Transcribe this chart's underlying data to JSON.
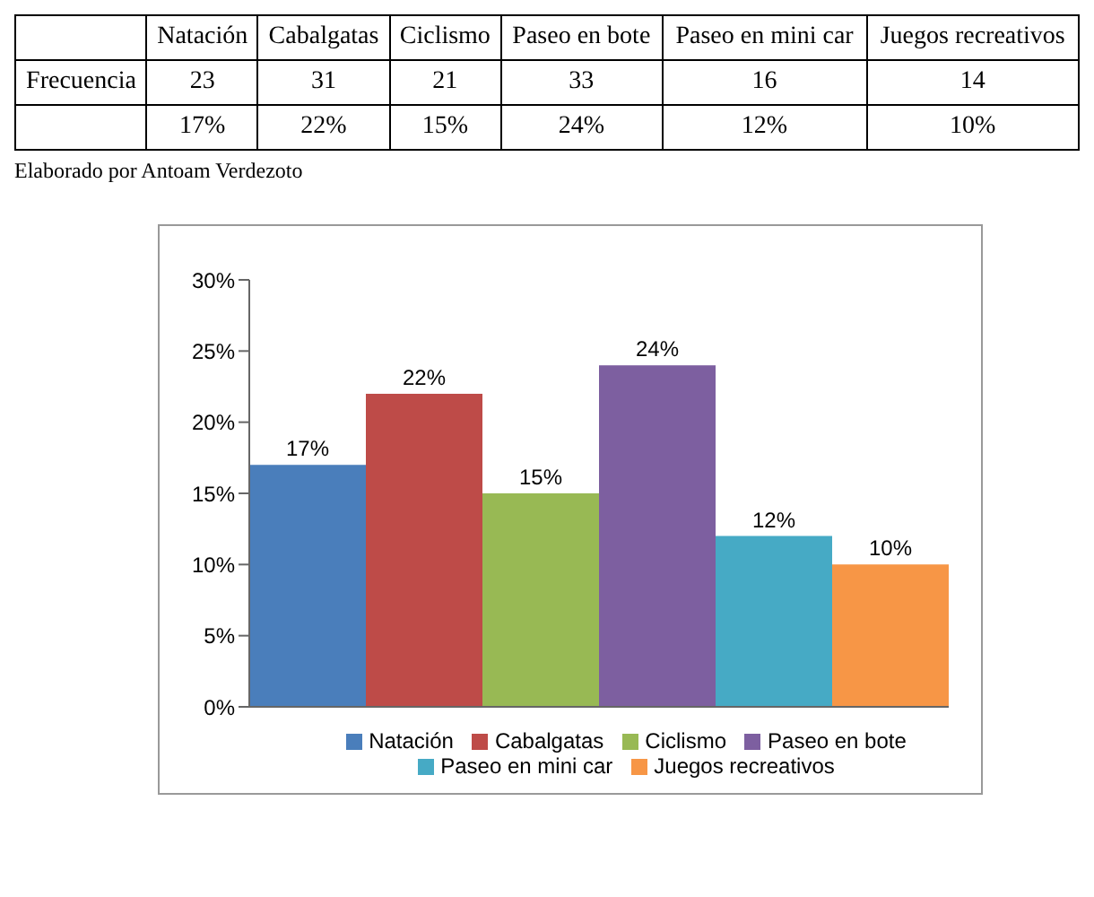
{
  "chart_data": [
    {
      "type": "other",
      "categories": [
        "Natación",
        "Cabalgatas",
        "Ciclismo",
        "Paseo en bote",
        "Paseo en mini car",
        "Juegos recreativos"
      ],
      "series": [
        {
          "name": "Frecuencia",
          "values": [
            23,
            31,
            21,
            33,
            16,
            14
          ],
          "value_labels": [
            "23",
            "31",
            "21",
            "33",
            "16",
            "14"
          ]
        },
        {
          "values": [
            17,
            22,
            15,
            24,
            12,
            10
          ],
          "value_labels": [
            "17%",
            "22%",
            "15%",
            "24%",
            "12%",
            "10%"
          ]
        }
      ],
      "annotations": [
        "Elaborado por Antoam Verdezoto"
      ]
    },
    {
      "type": "bar",
      "categories": [
        null
      ],
      "series": [
        {
          "name": "Natación",
          "color": "#4a7ebb",
          "values": [
            17
          ],
          "value_labels": [
            "17%"
          ]
        },
        {
          "name": "Cabalgatas",
          "color": "#be4b48",
          "values": [
            22
          ],
          "value_labels": [
            "22%"
          ]
        },
        {
          "name": "Ciclismo",
          "color": "#98b954",
          "values": [
            15
          ],
          "value_labels": [
            "15%"
          ]
        },
        {
          "name": "Paseo en bote",
          "color": "#7d5fa0",
          "values": [
            24
          ],
          "value_labels": [
            "24%"
          ]
        },
        {
          "name": "Paseo en mini car",
          "color": "#46aac5",
          "values": [
            12
          ],
          "value_labels": [
            "12%"
          ]
        },
        {
          "name": "Juegos recreativos",
          "color": "#f79646",
          "values": [
            10
          ],
          "value_labels": [
            "10%"
          ]
        }
      ],
      "ylim": [
        0,
        30
      ],
      "yticks": [
        {
          "value": 0,
          "label": "0%"
        },
        {
          "value": 5,
          "label": "5%"
        },
        {
          "value": 10,
          "label": "10%"
        },
        {
          "value": 15,
          "label": "15%"
        },
        {
          "value": 20,
          "label": "20%"
        },
        {
          "value": 25,
          "label": "25%"
        },
        {
          "value": 30,
          "label": "30%"
        }
      ],
      "tick_labels": "y",
      "grid": false,
      "legend": "bottom"
    }
  ]
}
